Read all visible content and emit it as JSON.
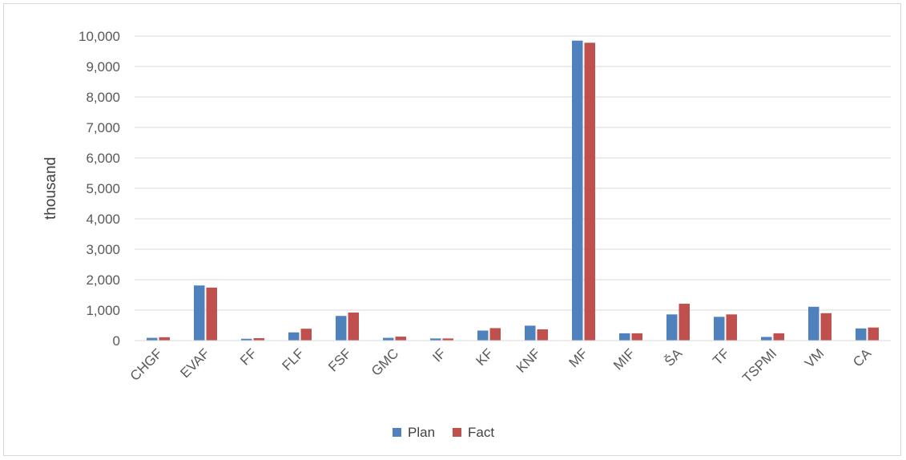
{
  "chart_data": {
    "type": "bar",
    "title": "",
    "xlabel": "",
    "ylabel": "thousand",
    "ylim": [
      0,
      10000
    ],
    "yticks": [
      0,
      1000,
      2000,
      3000,
      4000,
      5000,
      6000,
      7000,
      8000,
      9000,
      10000
    ],
    "ytick_labels": [
      "0",
      "1,000",
      "2,000",
      "3,000",
      "4,000",
      "5,000",
      "6,000",
      "7,000",
      "8,000",
      "9,000",
      "10,000"
    ],
    "grid": true,
    "legend_position": "bottom",
    "categories": [
      "CHGF",
      "EVAF",
      "FF",
      "FLF",
      "FSF",
      "GMC",
      "IF",
      "KF",
      "KNF",
      "MF",
      "MIF",
      "ŠA",
      "TF",
      "TSPMI",
      "VM",
      "CA"
    ],
    "series": [
      {
        "name": "Plan",
        "color": "#4f81bd",
        "values": [
          90,
          1810,
          60,
          270,
          810,
          90,
          70,
          330,
          490,
          9850,
          240,
          860,
          780,
          120,
          1110,
          400
        ]
      },
      {
        "name": "Fact",
        "color": "#c0504d",
        "values": [
          110,
          1740,
          80,
          390,
          920,
          130,
          70,
          410,
          370,
          9780,
          240,
          1210,
          860,
          240,
          900,
          430
        ]
      }
    ]
  }
}
